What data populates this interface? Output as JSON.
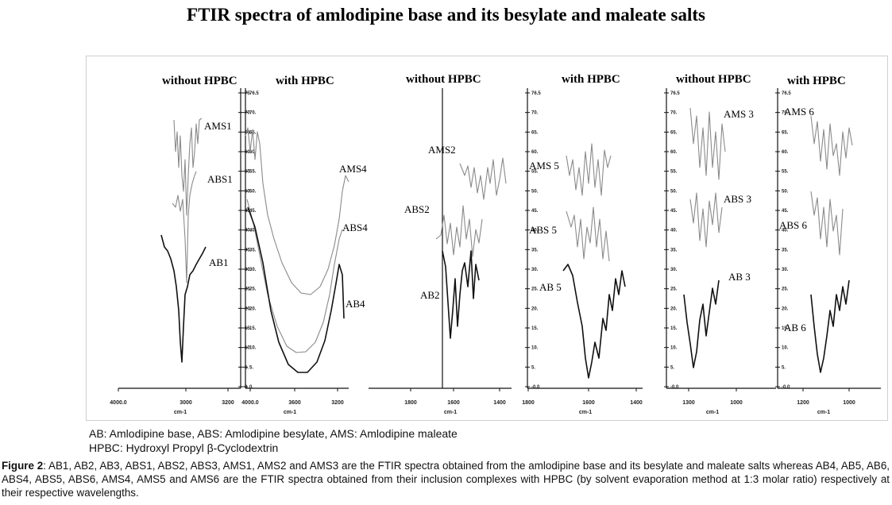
{
  "figure": {
    "title": "FTIR spectra of amlodipine base and its besylate and maleate salts"
  },
  "panels": [
    {
      "title": "without HPBC",
      "traces": [
        "AMS1",
        "ABS1",
        "AB1"
      ],
      "y_ticks": [
        "75.",
        "70.",
        "65.",
        "60.",
        "55.",
        "50.",
        "45.",
        "40.",
        "35.",
        "30.",
        "25.",
        "20.",
        "15.",
        "10.",
        "5.",
        "0."
      ],
      "x_ticks": [
        "4000.0",
        "3000",
        "3200"
      ],
      "x_unit": "cm-1"
    },
    {
      "title": "with HPBC",
      "traces": [
        "AMS4",
        "ABS4",
        "AB4"
      ],
      "y_ticks": [
        "76.5",
        "70.",
        "65.",
        "60.",
        "55.",
        "50.",
        "45.",
        "40.",
        "35.",
        "30.",
        "25.",
        "20.",
        "15.",
        "10.",
        "5.",
        "0."
      ],
      "x_ticks": [
        "4000.0",
        "3600",
        "3200"
      ],
      "x_unit": "cm-1"
    },
    {
      "title": "without HPBC",
      "traces": [
        "AMS2",
        "ABS2",
        "AB2"
      ],
      "y_ticks": [],
      "x_ticks": [
        "1800",
        "1600",
        "1400"
      ],
      "x_unit": "cm-1"
    },
    {
      "title": "with HPBC",
      "traces": [
        "AMS 5",
        "ABS 5",
        "AB 5"
      ],
      "y_ticks": [
        "76.5",
        "70.",
        "65.",
        "60.",
        "55.",
        "50.",
        "45.",
        "40.",
        "35.",
        "30.",
        "25.",
        "20.",
        "15.",
        "10.",
        "5.",
        "-0.0"
      ],
      "x_ticks": [
        "1800",
        "1600",
        "1400"
      ],
      "x_unit": "cm-1"
    },
    {
      "title": "without HPBC",
      "traces": [
        "AMS 3",
        "ABS 3",
        "AB 3"
      ],
      "y_ticks": [
        "76.5",
        "70.",
        "65.",
        "60.",
        "55.",
        "50.",
        "45.",
        "40.",
        "35.",
        "30.",
        "25.",
        "20.",
        "15.",
        "10.",
        "5.",
        "-0.0"
      ],
      "x_ticks": [
        "1300",
        "1000"
      ],
      "x_unit": "cm-1"
    },
    {
      "title": "with HPBC",
      "traces": [
        "AMS 6",
        "ABS 6",
        "AB 6"
      ],
      "y_ticks": [
        "76.5",
        "70.",
        "65.",
        "60.",
        "55.",
        "50.",
        "45.",
        "40.",
        "35.",
        "30.",
        "25.",
        "20.",
        "15.",
        "10.",
        "5.",
        "-0.0"
      ],
      "x_ticks": [
        "1200",
        "1000"
      ],
      "x_unit": "cm-1"
    }
  ],
  "legend": {
    "line1": "AB: Amlodipine base, ABS: Amlodipine besylate, AMS: Amlodipine maleate",
    "line2": "HPBC: Hydroxyl Propyl β-Cyclodextrin"
  },
  "caption": {
    "label": "Figure 2",
    "text": ": AB1, AB2, AB3, ABS1, ABS2, ABS3, AMS1, AMS2 and AMS3 are the FTIR spectra obtained from the amlodipine base and its besylate and maleate salts whereas AB4, AB5, AB6, ABS4, ABS5, ABS6, AMS4, AMS5 and AMS6 are the FTIR spectra obtained from their inclusion complexes with HPBC (by solvent evaporation method at 1:3 molar ratio) respectively at their respective wavelengths."
  }
}
